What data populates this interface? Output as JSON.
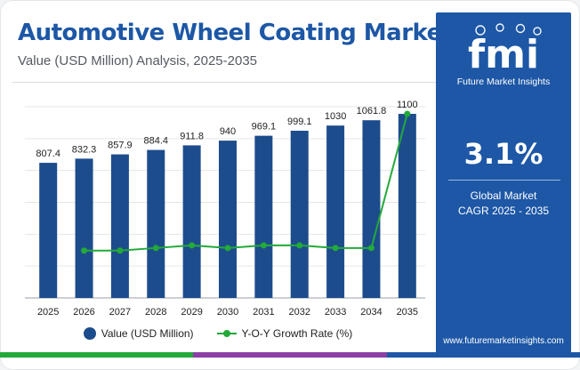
{
  "header": {
    "title": "Automotive Wheel Coating Market",
    "subtitle": "Value (USD Million) Analysis, 2025-2035"
  },
  "colors": {
    "bar": "#1d4c8c",
    "line": "#22aa3a",
    "brand": "#1d57a6",
    "bottom_bar": [
      "#22aa3a",
      "#8c3fa6",
      "#1d57a6"
    ]
  },
  "legend": {
    "bar_label": "Value (USD Million)",
    "line_label": "Y-O-Y Growth Rate (%)",
    "placement": "bottom"
  },
  "chart_data": {
    "type": "bar",
    "categories": [
      "2025",
      "2026",
      "2027",
      "2028",
      "2029",
      "2030",
      "2031",
      "2032",
      "2033",
      "2034",
      "2035"
    ],
    "series": [
      {
        "name": "Value (USD Million)",
        "type": "bar",
        "values": [
          807.4,
          832.3,
          857.9,
          884.4,
          911.8,
          940,
          969.1,
          999.1,
          1030,
          1061.8,
          1100
        ],
        "labels": [
          "807.4",
          "832.3",
          "857.9",
          "884.4",
          "911.8",
          "940",
          "969.1",
          "999.1",
          "1030",
          "1061.8",
          "1100"
        ]
      },
      {
        "name": "Y-O-Y Growth Rate (%)",
        "type": "line",
        "values": [
          null,
          3.08,
          3.08,
          3.09,
          3.1,
          3.09,
          3.1,
          3.1,
          3.09,
          3.09,
          3.6
        ]
      }
    ],
    "ylim": [
      0,
      1100
    ],
    "y2lim": [
      2.9,
      3.6
    ],
    "grid": true,
    "legend": "bottom"
  },
  "panel": {
    "logo_text": "fmi",
    "logo_subtitle": "Future Market Insights",
    "kpi_value": "3.1%",
    "kpi_label_line1": "Global Market",
    "kpi_label_line2": "CAGR 2025 - 2035",
    "website": "www.futuremarketinsights.com"
  }
}
